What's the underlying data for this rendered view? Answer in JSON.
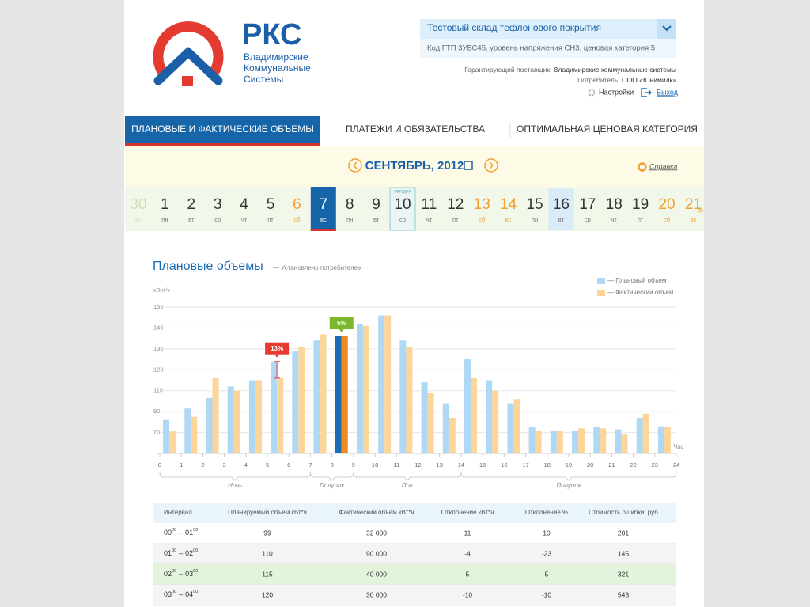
{
  "header": {
    "logo_title": "РКС",
    "logo_subtitle": [
      "Владимирские",
      "Коммунальные",
      "Системы"
    ],
    "object_select": {
      "title": "Тестовый склад тефлонового покрытия",
      "details": "Код ГТП 3УВС45, уровень напряжения СН3, ценовая категория 5"
    },
    "supplier_label": "Гарантирующий поставщик:",
    "supplier": "Владимирские коммунальные системы",
    "consumer_label": "Потребитель:",
    "consumer": "ООО «Юнимилк»",
    "settings": "Настройки",
    "logout": "Выход"
  },
  "tabs": {
    "items": [
      "ПЛАНОВЫЕ И ФАКТИЧЕСКИЕ ОБЪЕМЫ",
      "ПЛАТЕЖИ И ОБЯЗАТЕЛЬСТВА",
      "ОПТИМАЛЬНАЯ ЦЕНОВАЯ КАТЕГОРИЯ"
    ],
    "active": 0
  },
  "period": {
    "month": "СЕНТЯБРЬ, 2012",
    "help": "Справка"
  },
  "days": {
    "today_label": "сегодня",
    "items": [
      {
        "day": "30",
        "weekday": "вс",
        "other_month": true
      },
      {
        "day": "1",
        "weekday": "пн"
      },
      {
        "day": "2",
        "weekday": "вт"
      },
      {
        "day": "3",
        "weekday": "ср"
      },
      {
        "day": "4",
        "weekday": "чт"
      },
      {
        "day": "5",
        "weekday": "пт"
      },
      {
        "day": "6",
        "weekday": "сб",
        "weekend": true
      },
      {
        "day": "7",
        "weekday": "вс",
        "selected": true
      },
      {
        "day": "8",
        "weekday": "пн"
      },
      {
        "day": "9",
        "weekday": "вт"
      },
      {
        "day": "10",
        "weekday": "ср",
        "today": true
      },
      {
        "day": "11",
        "weekday": "чт"
      },
      {
        "day": "12",
        "weekday": "пт"
      },
      {
        "day": "13",
        "weekday": "сб",
        "weekend": true
      },
      {
        "day": "14",
        "weekday": "вс",
        "weekend": true
      },
      {
        "day": "15",
        "weekday": "пн"
      },
      {
        "day": "16",
        "weekday": "вт",
        "hover": true
      },
      {
        "day": "17",
        "weekday": "ср"
      },
      {
        "day": "18",
        "weekday": "чт"
      },
      {
        "day": "19",
        "weekday": "пт"
      },
      {
        "day": "20",
        "weekday": "сб",
        "weekend": true
      },
      {
        "day": "21",
        "weekday": "вс",
        "weekend": true
      }
    ]
  },
  "chart_data": {
    "type": "bar",
    "title": "Плановые объемы",
    "subtitle": "— Установлено потребителем",
    "y_label": "кВт/ч",
    "x_label": "Час",
    "x": [
      0,
      1,
      2,
      3,
      4,
      5,
      6,
      7,
      8,
      9,
      10,
      11,
      12,
      13,
      14,
      15,
      16,
      17,
      18,
      19,
      20,
      21,
      22,
      23
    ],
    "series": [
      {
        "name": "— Плановый объем",
        "color": "#aed8f4",
        "values": [
          82,
          93,
          103,
          112,
          115,
          124,
          129,
          134,
          136,
          142,
          146,
          134,
          114,
          98,
          125,
          115,
          98,
          75,
          72,
          72,
          75,
          73,
          84,
          76
        ]
      },
      {
        "name": "— Фактический объем",
        "color": "#fbd59a",
        "values": [
          71,
          85,
          116,
          110,
          115,
          116,
          131,
          137,
          136,
          141,
          146,
          131,
          108,
          84,
          116,
          110,
          102,
          72,
          72,
          74,
          74,
          68,
          88,
          75
        ]
      }
    ],
    "highlight": {
      "x": 8,
      "colors": [
        "#1a6db5",
        "#f08a1c"
      ]
    },
    "annotations": [
      {
        "x": 5,
        "label": "13%",
        "color": "#e53a2f"
      },
      {
        "x": 8,
        "label": "5%",
        "color": "#7cb72c"
      }
    ],
    "periods": [
      {
        "label": "Ночь",
        "from": 0,
        "to": 7
      },
      {
        "label": "Полупик",
        "from": 7,
        "to": 9
      },
      {
        "label": "Пик",
        "from": 9,
        "to": 14
      },
      {
        "label": "Полупик",
        "from": 14,
        "to": 24
      }
    ],
    "xlim": [
      0,
      24
    ],
    "xticks": [
      0,
      1,
      2,
      3,
      4,
      5,
      6,
      7,
      8,
      9,
      10,
      11,
      12,
      13,
      14,
      15,
      16,
      17,
      18,
      19,
      20,
      21,
      22,
      23,
      24
    ],
    "ylim": [
      50,
      150
    ],
    "yticks": [
      70,
      90,
      110,
      120,
      130,
      140,
      150
    ],
    "grid": true,
    "legend": "top-right"
  },
  "table": {
    "columns": [
      "Интервал",
      "Планируемый объем кВт*ч",
      "Фактический объем кВт*ч",
      "Отклонение кВт*ч",
      "Отклонение %",
      "Стоимость ошибки, руб"
    ],
    "interval_separator": "–",
    "rows": [
      {
        "interval": {
          "from": "00",
          "from_min": "00",
          "to": "01",
          "to_min": "00"
        },
        "cells": [
          "99",
          "32 000",
          "11",
          "10",
          "201"
        ]
      },
      {
        "interval": {
          "from": "01",
          "from_min": "00",
          "to": "02",
          "to_min": "00"
        },
        "cells": [
          "110",
          "90 000",
          "-4",
          "-23",
          "145"
        ]
      },
      {
        "interval": {
          "from": "02",
          "from_min": "00",
          "to": "03",
          "to_min": "00"
        },
        "cells": [
          "115",
          "40 000",
          "5",
          "5",
          "321"
        ],
        "highlight": true
      },
      {
        "interval": {
          "from": "03",
          "from_min": "00",
          "to": "04",
          "to_min": "00"
        },
        "cells": [
          "120",
          "30 000",
          "-10",
          "-10",
          "543"
        ]
      }
    ]
  }
}
